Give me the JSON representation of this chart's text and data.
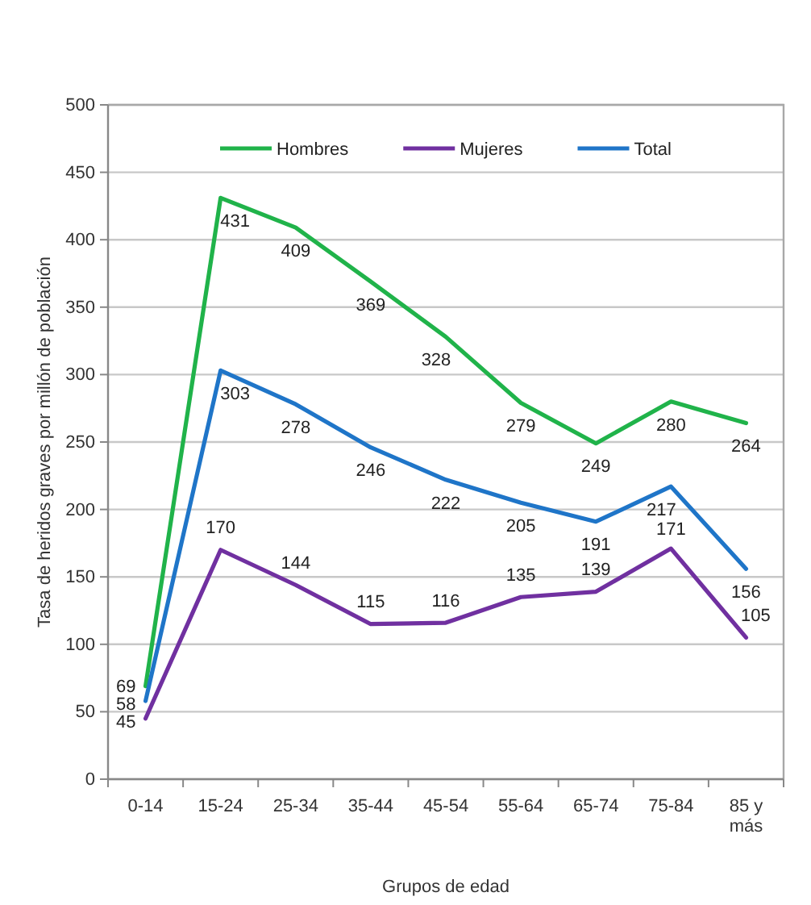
{
  "chart_data": {
    "type": "line",
    "categories": [
      "0-14",
      "15-24",
      "25-34",
      "35-44",
      "45-54",
      "55-64",
      "65-74",
      "75-84",
      "85 y más"
    ],
    "series": [
      {
        "name": "Hombres",
        "color": "#20b34a",
        "values": [
          69,
          431,
          409,
          369,
          328,
          279,
          249,
          280,
          264
        ]
      },
      {
        "name": "Mujeres",
        "color": "#7030a0",
        "values": [
          45,
          170,
          144,
          115,
          116,
          135,
          139,
          171,
          105
        ]
      },
      {
        "name": "Total",
        "color": "#1f75c8",
        "values": [
          58,
          303,
          278,
          246,
          222,
          205,
          191,
          217,
          156
        ]
      }
    ],
    "ylim": [
      0,
      500
    ],
    "yticks": [
      0,
      50,
      100,
      150,
      200,
      250,
      300,
      350,
      400,
      450,
      500
    ],
    "xlabel": "Grupos de edad",
    "ylabel": "Tasa de heridos graves por millón de población",
    "grid": "y",
    "legend": "top",
    "data_labels": true
  }
}
